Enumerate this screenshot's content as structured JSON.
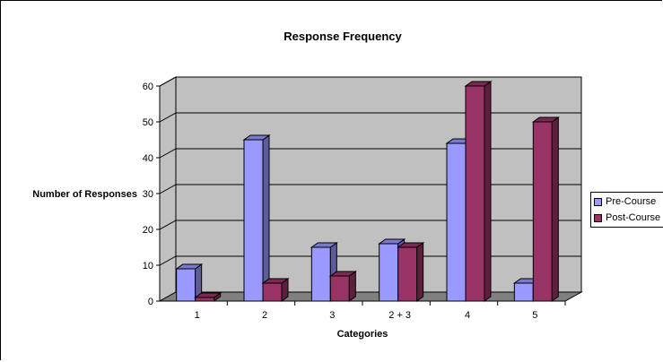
{
  "chart_data": {
    "type": "bar",
    "title": "Response Frequency",
    "xlabel": "Categories",
    "ylabel": "Number of Responses",
    "categories": [
      "1",
      "2",
      "3",
      "2 + 3",
      "4",
      "5"
    ],
    "series": [
      {
        "name": "Pre-Course",
        "values": [
          9,
          45,
          15,
          16,
          44,
          5
        ],
        "color": "#9999ff"
      },
      {
        "name": "Post-Course",
        "values": [
          1,
          5,
          7,
          15,
          60,
          50
        ],
        "color": "#993366"
      }
    ],
    "ylim": [
      0,
      60
    ],
    "yticks": [
      0,
      10,
      20,
      30,
      40,
      50,
      60
    ],
    "grid": true,
    "legend_position": "right",
    "wall_color": "#c0c0c0",
    "floor_color": "#808080"
  }
}
